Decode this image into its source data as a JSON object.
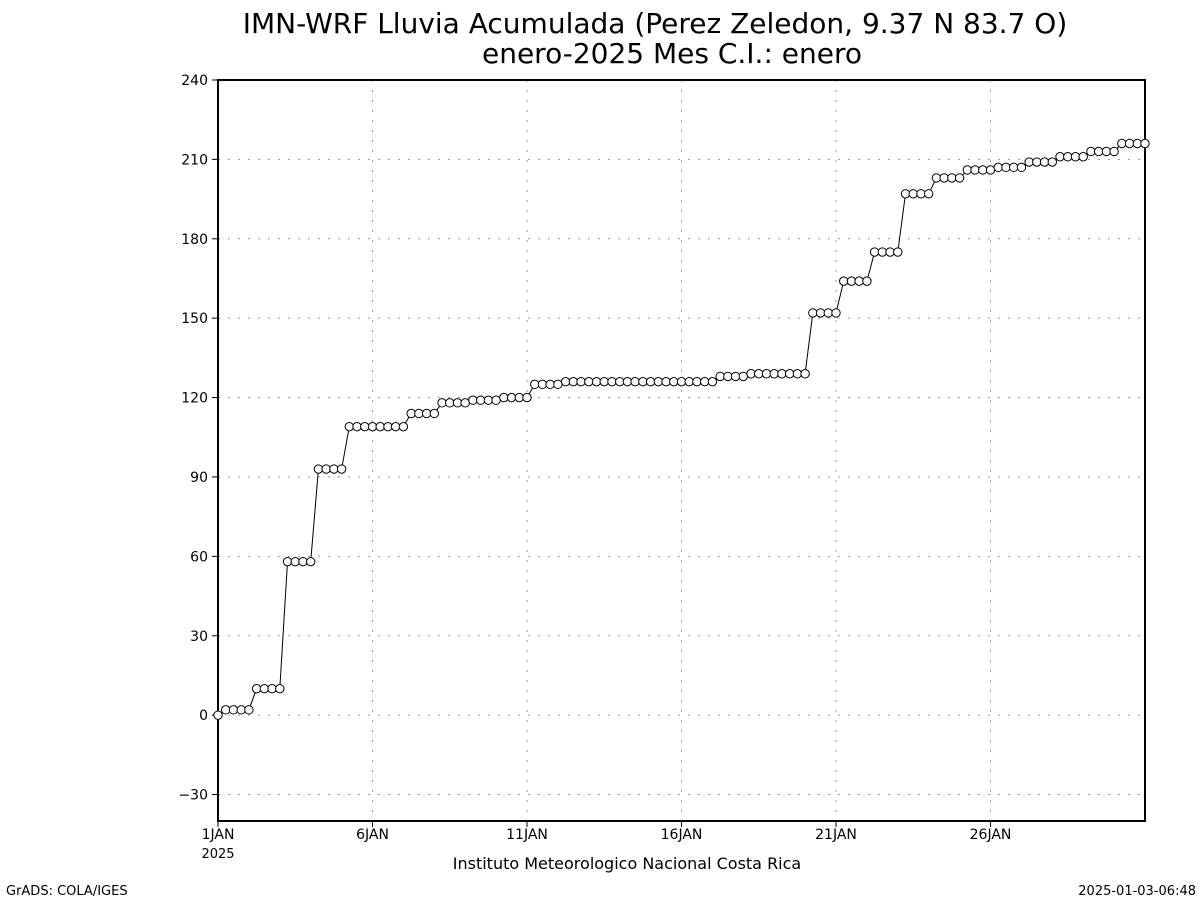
{
  "chart_data": {
    "type": "line",
    "title": "IMN-WRF  Lluvia Acumulada (Perez Zeledon, 9.37  N 83.7  O)",
    "subtitle": "enero-2025 Mes C.I.: enero",
    "xlabel": "",
    "ylabel": "",
    "ylim": [
      -40,
      240
    ],
    "yticks": [
      240,
      210,
      180,
      150,
      120,
      90,
      60,
      30,
      0,
      -30
    ],
    "ytick_labels": [
      "240",
      "210",
      "180",
      "150",
      "120",
      "90",
      "60",
      "30",
      "0",
      "−30"
    ],
    "xlim": [
      1,
      31
    ],
    "xticks": [
      1,
      6,
      11,
      16,
      21,
      26
    ],
    "xtick_labels": [
      "1JAN",
      "6JAN",
      "11JAN",
      "16JAN",
      "21JAN",
      "26JAN"
    ],
    "x_year_label": "2025",
    "grid": true,
    "legend": "none",
    "x_step_days": 0.25,
    "series": [
      {
        "values": [
          0,
          2,
          2,
          2,
          2,
          10,
          10,
          10,
          10,
          58,
          58,
          58,
          58,
          93,
          93,
          93,
          93,
          109,
          109,
          109,
          109,
          109,
          109,
          109,
          109,
          114,
          114,
          114,
          114,
          118,
          118,
          118,
          118,
          119,
          119,
          119,
          119,
          120,
          120,
          120,
          120,
          125,
          125,
          125,
          125,
          126,
          126,
          126,
          126,
          126,
          126,
          126,
          126,
          126,
          126,
          126,
          126,
          126,
          126,
          126,
          126,
          126,
          126,
          126,
          126,
          128,
          128,
          128,
          128,
          129,
          129,
          129,
          129,
          129,
          129,
          129,
          129,
          152,
          152,
          152,
          152,
          164,
          164,
          164,
          164,
          175,
          175,
          175,
          175,
          197,
          197,
          197,
          197,
          203,
          203,
          203,
          203,
          206,
          206,
          206,
          206,
          207,
          207,
          207,
          207,
          209,
          209,
          209,
          209,
          211,
          211,
          211,
          211,
          213,
          213,
          213,
          213,
          216,
          216,
          216,
          216
        ]
      }
    ]
  },
  "footer": {
    "institution": "Instituto Meteorologico Nacional Costa Rica",
    "software": "GrADS: COLA/IGES",
    "timestamp": "2025-01-03-06:48"
  },
  "colors": {
    "line": "#000000",
    "marker_fill": "#ffffff",
    "grid": "#9a9a9a",
    "background": "#ffffff"
  }
}
